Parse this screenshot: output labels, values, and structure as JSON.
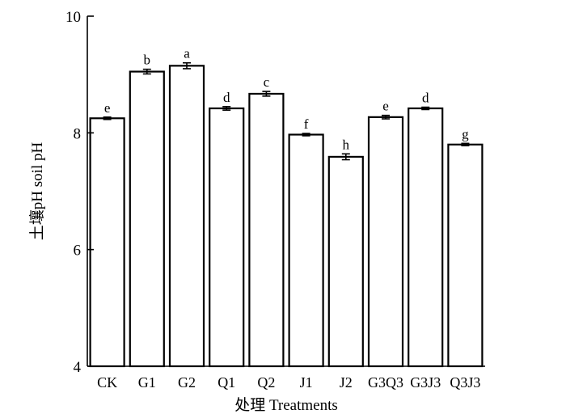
{
  "chart_data": {
    "type": "bar",
    "xlabel": "处理 Treatments",
    "ylabel": "土壤pH soil pH",
    "ylim": [
      4,
      10
    ],
    "yticks": [
      4,
      6,
      8,
      10
    ],
    "categories": [
      "CK",
      "G1",
      "G2",
      "Q1",
      "Q2",
      "J1",
      "J2",
      "G3Q3",
      "G3J3",
      "Q3J3"
    ],
    "values": [
      8.25,
      9.05,
      9.15,
      8.42,
      8.67,
      7.97,
      7.59,
      8.27,
      8.42,
      7.8
    ],
    "errors": [
      0.02,
      0.04,
      0.05,
      0.03,
      0.04,
      0.02,
      0.05,
      0.03,
      0.02,
      0.02
    ],
    "significance": [
      "e",
      "b",
      "a",
      "d",
      "c",
      "f",
      "h",
      "e",
      "d",
      "g"
    ],
    "grid": false
  }
}
